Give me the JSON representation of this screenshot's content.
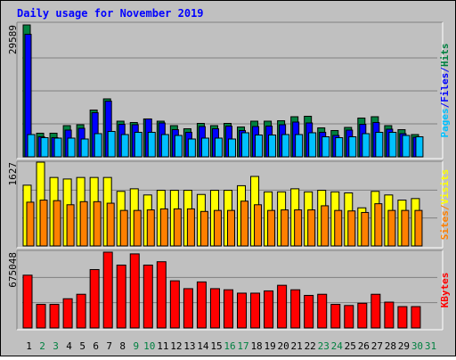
{
  "chart_data": {
    "title": "Daily usage for November 2019",
    "type": "bar",
    "days": [
      "1",
      "2",
      "3",
      "4",
      "5",
      "6",
      "7",
      "8",
      "9",
      "10",
      "11",
      "12",
      "13",
      "14",
      "15",
      "16",
      "17",
      "18",
      "19",
      "20",
      "21",
      "22",
      "23",
      "24",
      "25",
      "26",
      "27",
      "28",
      "29",
      "30",
      "31"
    ],
    "weekend_days": [
      "2",
      "3",
      "9",
      "10",
      "16",
      "17",
      "23",
      "24",
      "30",
      "31"
    ],
    "panels": [
      {
        "id": "hits-files-pages",
        "ymax_label": "29589",
        "ymax": 29589,
        "ylabel_parts": [
          {
            "text": "Pages",
            "color": "#00c0ff"
          },
          {
            "text": "/",
            "color": "#0000ff"
          },
          {
            "text": "Files",
            "color": "#0000ff"
          },
          {
            "text": "/",
            "color": "#0000ff"
          },
          {
            "text": "Hits",
            "color": "#008040"
          }
        ],
        "series": [
          {
            "name": "Hits",
            "color": "#008040",
            "values": [
              29589,
              5300,
              5300,
              7000,
              7200,
              10500,
              13000,
              8000,
              7700,
              8500,
              8000,
              7000,
              6300,
              7500,
              7000,
              7500,
              6700,
              8000,
              8000,
              8100,
              9000,
              9100,
              6500,
              5900,
              6600,
              8700,
              9000,
              7000,
              6100,
              5000,
              null
            ]
          },
          {
            "name": "Files",
            "color": "#0000ff",
            "values": [
              27500,
              4500,
              4300,
              6000,
              6400,
              9900,
              12500,
              7300,
              7200,
              8500,
              7600,
              6100,
              5500,
              6800,
              6300,
              6900,
              5900,
              6800,
              6900,
              7200,
              7800,
              7600,
              5500,
              4800,
              6000,
              7300,
              7700,
              6200,
              5200,
              4400,
              null
            ]
          },
          {
            "name": "Pages",
            "color": "#00c0ff",
            "values": [
              5000,
              4300,
              4200,
              4200,
              4000,
              5200,
              5700,
              5000,
              5500,
              5500,
              5000,
              4800,
              4000,
              4200,
              4200,
              4000,
              5400,
              4900,
              4900,
              5000,
              5000,
              5400,
              4500,
              4300,
              4500,
              5200,
              5500,
              5500,
              4800,
              4500,
              null
            ]
          }
        ]
      },
      {
        "id": "visits-sites",
        "ymax_label": "1627",
        "ymax": 1627,
        "ylabel_parts": [
          {
            "text": "Sites",
            "color": "#ff8000"
          },
          {
            "text": "/",
            "color": "#ff8000"
          },
          {
            "text": "Visits",
            "color": "#ffff00"
          }
        ],
        "series": [
          {
            "name": "Visits",
            "color": "#ffff00",
            "values": [
              1180,
              1627,
              1330,
              1300,
              1330,
              1330,
              1330,
              1060,
              1110,
              990,
              1080,
              1080,
              1080,
              1000,
              1080,
              1080,
              1170,
              1350,
              1050,
              1050,
              1110,
              1050,
              1080,
              1050,
              1030,
              740,
              1060,
              990,
              890,
              920,
              null
            ]
          },
          {
            "name": "Sites",
            "color": "#ff8000",
            "values": [
              850,
              890,
              880,
              800,
              860,
              860,
              830,
              690,
              690,
              700,
              720,
              720,
              720,
              670,
              690,
              690,
              870,
              800,
              690,
              700,
              700,
              700,
              780,
              690,
              680,
              650,
              820,
              690,
              690,
              690,
              null
            ]
          }
        ]
      },
      {
        "id": "kbytes",
        "ymax_label": "675048",
        "ymax": 675048,
        "ylabel_parts": [
          {
            "text": "KBytes",
            "color": "#ff0000"
          }
        ],
        "series": [
          {
            "name": "KBytes",
            "color": "#ff0000",
            "values": [
              470000,
              210000,
              210000,
              260000,
              300000,
              520000,
              675048,
              560000,
              660000,
              560000,
              590000,
              420000,
              350000,
              410000,
              350000,
              340000,
              310000,
              310000,
              330000,
              380000,
              340000,
              290000,
              300000,
              210000,
              200000,
              220000,
              300000,
              230000,
              190000,
              190000,
              null
            ]
          }
        ]
      }
    ]
  }
}
